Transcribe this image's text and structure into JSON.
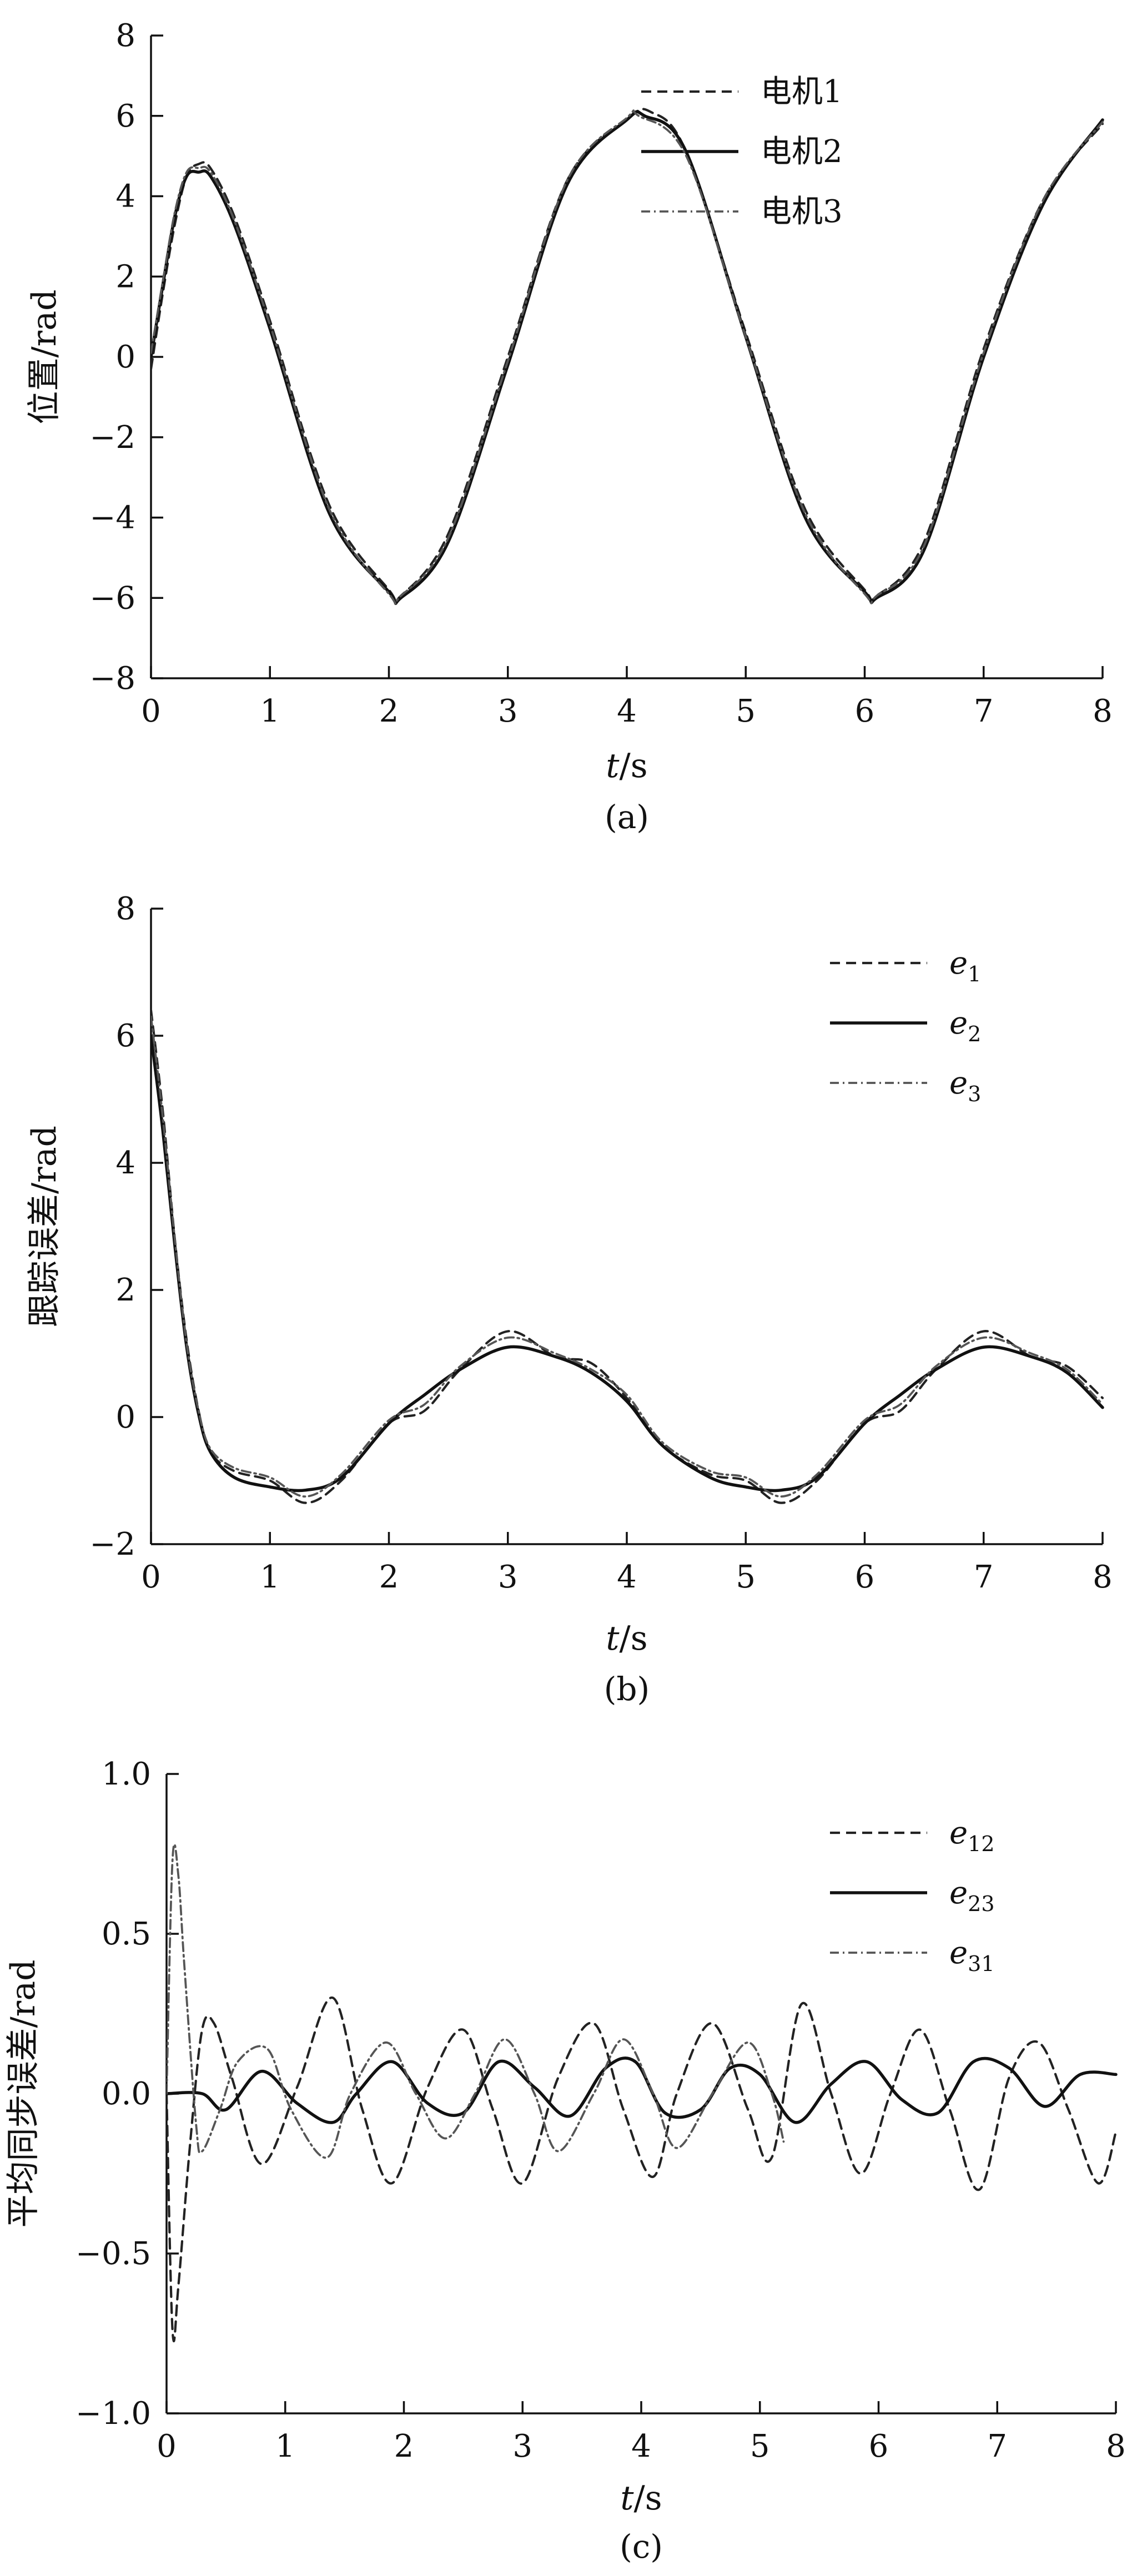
{
  "colors": {
    "ink": "#111111",
    "background": "#ffffff",
    "dashed_series": "#222222",
    "dashdot_series": "#555555"
  },
  "chart_data": [
    {
      "id": "a",
      "type": "line",
      "caption": "(a)",
      "xlabel": "t/s",
      "ylabel": "位置/rad",
      "xlim": [
        0,
        8
      ],
      "ylim": [
        -8,
        8
      ],
      "xticks": [
        0,
        1,
        2,
        3,
        4,
        5,
        6,
        7,
        8
      ],
      "yticks": [
        -8,
        -6,
        -4,
        -2,
        0,
        2,
        4,
        6,
        8
      ],
      "legend_position": "top-right",
      "series": [
        {
          "name": "电机1",
          "style": "dashed",
          "x": [
            0,
            0.1,
            0.2,
            0.3,
            0.4,
            0.5,
            0.7,
            1,
            1.5,
            2,
            2.1,
            2.5,
            3,
            3.5,
            4,
            4.2,
            4.5,
            5,
            5.5,
            6,
            6.1,
            6.5,
            7,
            7.5,
            8
          ],
          "y": [
            -0.3,
            1.6,
            3.3,
            4.5,
            4.8,
            4.7,
            3.5,
            0.9,
            -3.7,
            -5.8,
            -5.95,
            -4.4,
            0,
            4.4,
            5.9,
            6.1,
            5.1,
            0.6,
            -3.8,
            -5.8,
            -5.95,
            -4.6,
            0.2,
            3.9,
            5.8
          ]
        },
        {
          "name": "电机2",
          "style": "solid",
          "x": [
            0,
            0.1,
            0.2,
            0.3,
            0.4,
            0.5,
            0.7,
            1,
            1.5,
            2,
            2.1,
            2.5,
            3,
            3.5,
            4,
            4.15,
            4.5,
            5,
            5.5,
            6,
            6.1,
            6.5,
            7,
            7.5,
            8
          ],
          "y": [
            0,
            1.8,
            3.5,
            4.5,
            4.6,
            4.5,
            3.3,
            0.7,
            -3.9,
            -5.85,
            -6.0,
            -4.6,
            -0.2,
            4.3,
            5.9,
            6.0,
            5.1,
            0.5,
            -4.0,
            -5.85,
            -6.0,
            -4.8,
            0,
            3.8,
            5.9
          ]
        },
        {
          "name": "电机3",
          "style": "dashdot",
          "x": [
            0,
            0.1,
            0.2,
            0.3,
            0.4,
            0.5,
            0.7,
            1,
            1.5,
            2,
            2.1,
            2.5,
            3,
            3.5,
            4,
            4.1,
            4.5,
            5,
            5.5,
            6,
            6.1,
            6.5,
            7,
            7.5,
            8
          ],
          "y": [
            0.1,
            1.9,
            3.6,
            4.6,
            4.7,
            4.6,
            3.4,
            0.8,
            -3.8,
            -5.9,
            -5.95,
            -4.5,
            -0.1,
            4.4,
            5.95,
            6.0,
            5.0,
            0.5,
            -3.9,
            -5.9,
            -5.95,
            -4.7,
            0.1,
            3.9,
            5.85
          ]
        }
      ]
    },
    {
      "id": "b",
      "type": "line",
      "caption": "(b)",
      "xlabel": "t/s",
      "ylabel": "跟踪误差/rad",
      "xlim": [
        0,
        8
      ],
      "ylim": [
        -2,
        8
      ],
      "xticks": [
        0,
        1,
        2,
        3,
        4,
        5,
        6,
        7,
        8
      ],
      "yticks": [
        -2,
        0,
        2,
        4,
        6,
        8
      ],
      "legend_position": "top-right",
      "series": [
        {
          "name": "e1",
          "base": "e",
          "sub": "1",
          "style": "dashed",
          "x": [
            0,
            0.1,
            0.2,
            0.3,
            0.4,
            0.5,
            0.7,
            1,
            1.3,
            1.6,
            2,
            2.3,
            2.6,
            3,
            3.4,
            3.7,
            4,
            4.3,
            4.7,
            5,
            5.3,
            5.6,
            6,
            6.3,
            6.6,
            7,
            7.4,
            7.7,
            8
          ],
          "y": [
            6.4,
            4.8,
            2.8,
            1.2,
            0.1,
            -0.55,
            -0.85,
            -1.0,
            -1.35,
            -1.0,
            -0.1,
            0.1,
            0.75,
            1.35,
            0.95,
            0.85,
            0.3,
            -0.45,
            -0.9,
            -1.0,
            -1.35,
            -1.0,
            -0.1,
            0.1,
            0.75,
            1.35,
            0.95,
            0.8,
            0.3
          ]
        },
        {
          "name": "e2",
          "base": "e",
          "sub": "2",
          "style": "solid",
          "x": [
            0,
            0.1,
            0.2,
            0.3,
            0.4,
            0.5,
            0.7,
            1,
            1.3,
            1.6,
            2,
            2.3,
            2.6,
            3,
            3.4,
            3.7,
            4,
            4.3,
            4.7,
            5,
            5.3,
            5.6,
            6,
            6.3,
            6.6,
            7,
            7.4,
            7.7,
            8
          ],
          "y": [
            6.0,
            4.5,
            2.7,
            1.1,
            0.05,
            -0.55,
            -0.95,
            -1.1,
            -1.15,
            -0.95,
            -0.1,
            0.35,
            0.75,
            1.1,
            0.95,
            0.7,
            0.25,
            -0.45,
            -0.95,
            -1.1,
            -1.15,
            -0.95,
            -0.1,
            0.35,
            0.75,
            1.1,
            0.95,
            0.7,
            0.15
          ]
        },
        {
          "name": "e3",
          "base": "e",
          "sub": "3",
          "style": "dashdot",
          "x": [
            0,
            0.1,
            0.2,
            0.3,
            0.4,
            0.5,
            0.7,
            1,
            1.3,
            1.6,
            2,
            2.3,
            2.6,
            3,
            3.4,
            3.7,
            4,
            4.3,
            4.7,
            5,
            5.3,
            5.6,
            6,
            6.3,
            6.6,
            7,
            7.4,
            7.7,
            8
          ],
          "y": [
            6.3,
            4.7,
            2.8,
            1.15,
            0.1,
            -0.5,
            -0.8,
            -0.95,
            -1.25,
            -0.9,
            -0.05,
            0.2,
            0.8,
            1.25,
            1.0,
            0.75,
            0.35,
            -0.4,
            -0.85,
            -0.95,
            -1.25,
            -0.9,
            -0.05,
            0.2,
            0.8,
            1.25,
            1.0,
            0.75,
            0.2
          ]
        }
      ]
    },
    {
      "id": "c",
      "type": "line",
      "caption": "(c)",
      "xlabel": "t/s",
      "ylabel": "平均同步误差/rad",
      "xlim": [
        0,
        8
      ],
      "ylim": [
        -1.0,
        1.0
      ],
      "xticks": [
        0,
        1,
        2,
        3,
        4,
        5,
        6,
        7,
        8
      ],
      "yticks": [
        -1.0,
        -0.5,
        0.0,
        0.5,
        1.0
      ],
      "ytick_labels": [
        "-1.0",
        "-0.5",
        "0.0",
        "0.5",
        "1.0"
      ],
      "legend_position": "top-right",
      "series": [
        {
          "name": "e12",
          "base": "e",
          "sub": "12",
          "style": "dashed",
          "x": [
            0,
            0.05,
            0.1,
            0.2,
            0.3,
            0.4,
            0.55,
            0.8,
            1.1,
            1.4,
            1.65,
            1.9,
            2.2,
            2.5,
            2.75,
            3.0,
            3.3,
            3.6,
            3.85,
            4.1,
            4.3,
            4.6,
            4.9,
            5.1,
            5.35,
            5.6,
            5.85,
            6.1,
            6.35,
            6.6,
            6.85,
            7.1,
            7.35,
            7.6,
            7.85,
            8.0
          ],
          "y": [
            0,
            -0.74,
            -0.6,
            -0.15,
            0.2,
            0.22,
            0.05,
            -0.22,
            0.02,
            0.3,
            -0.05,
            -0.28,
            0.02,
            0.2,
            -0.05,
            -0.28,
            0.05,
            0.22,
            -0.05,
            -0.26,
            0.0,
            0.22,
            -0.05,
            -0.2,
            0.28,
            0.0,
            -0.25,
            0.0,
            0.2,
            -0.05,
            -0.3,
            0.05,
            0.16,
            -0.05,
            -0.28,
            -0.12
          ]
        },
        {
          "name": "e23",
          "base": "e",
          "sub": "23",
          "style": "solid",
          "x": [
            0,
            0.3,
            0.5,
            0.8,
            1.1,
            1.4,
            1.6,
            1.9,
            2.2,
            2.5,
            2.8,
            3.1,
            3.4,
            3.7,
            3.95,
            4.2,
            4.5,
            4.75,
            5.0,
            5.3,
            5.6,
            5.9,
            6.2,
            6.5,
            6.8,
            7.1,
            7.4,
            7.7,
            8.0
          ],
          "y": [
            0,
            0.0,
            -0.05,
            0.07,
            -0.03,
            -0.09,
            0.0,
            0.1,
            -0.03,
            -0.06,
            0.1,
            0.02,
            -0.07,
            0.08,
            0.1,
            -0.06,
            -0.05,
            0.08,
            0.06,
            -0.09,
            0.03,
            0.1,
            -0.02,
            -0.06,
            0.1,
            0.08,
            -0.04,
            0.06,
            0.06
          ]
        },
        {
          "name": "e31",
          "base": "e",
          "sub": "31",
          "style": "dashdot",
          "x": [
            0,
            0.05,
            0.1,
            0.15,
            0.25,
            0.3,
            0.45,
            0.6,
            0.85,
            1.05,
            1.35,
            1.55,
            1.85,
            2.1,
            2.35,
            2.6,
            2.85,
            3.1,
            3.3,
            3.6,
            3.85,
            4.1,
            4.3,
            4.6,
            4.9,
            5.1,
            5.2
          ],
          "y": [
            0,
            0.73,
            0.68,
            0.4,
            -0.1,
            -0.18,
            -0.05,
            0.1,
            0.14,
            -0.05,
            -0.2,
            0.0,
            0.16,
            0.0,
            -0.14,
            0.0,
            0.17,
            0.0,
            -0.18,
            0.0,
            0.17,
            0.0,
            -0.17,
            0.0,
            0.16,
            0.0,
            -0.15
          ]
        }
      ]
    }
  ]
}
